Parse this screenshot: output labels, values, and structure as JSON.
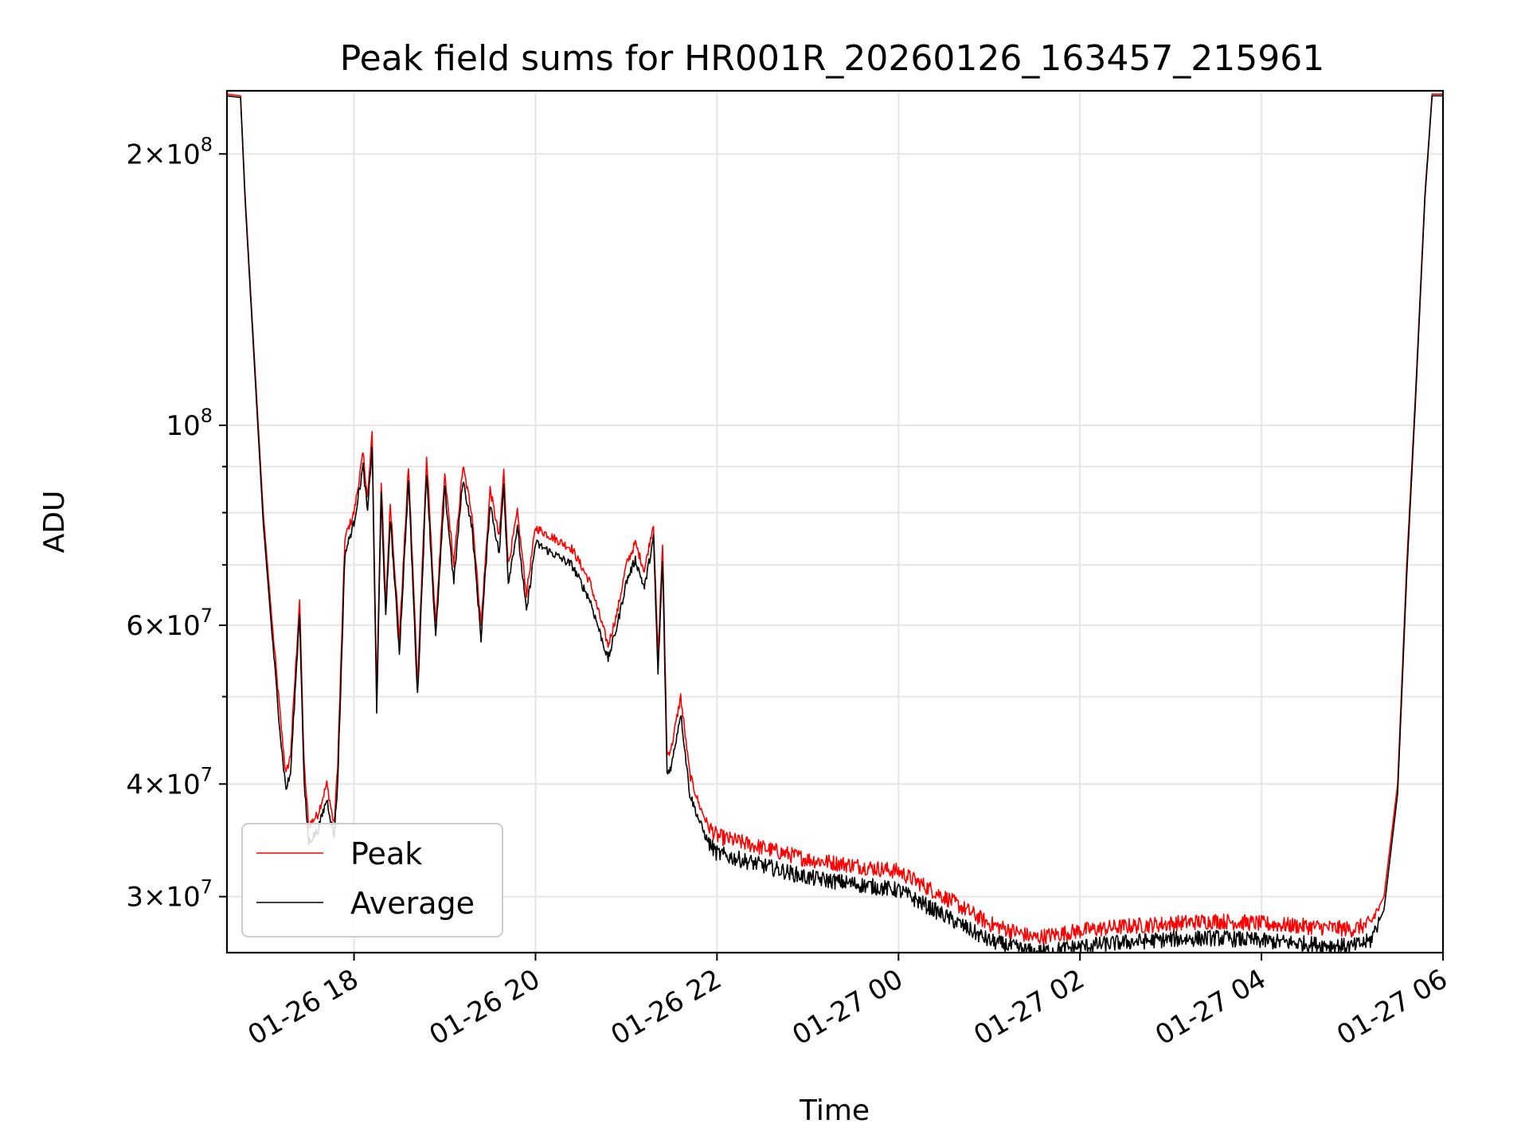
{
  "chart_data": {
    "type": "line",
    "title": "Peak field sums for HR001R_20260126_163457_215961",
    "xlabel": "Time",
    "ylabel": "ADU",
    "yscale": "log",
    "ylim": [
      26000000,
      235000000
    ],
    "xlim_hours": [
      16.6,
      30.0
    ],
    "grid": true,
    "legend_position": "lower-left",
    "x_ticks": [
      {
        "hour": 18,
        "label": "01-26 18"
      },
      {
        "hour": 20,
        "label": "01-26 20"
      },
      {
        "hour": 22,
        "label": "01-26 22"
      },
      {
        "hour": 24,
        "label": "01-27 00"
      },
      {
        "hour": 26,
        "label": "01-27 02"
      },
      {
        "hour": 28,
        "label": "01-27 04"
      },
      {
        "hour": 30,
        "label": "01-27 06"
      }
    ],
    "y_ticks": [
      {
        "value": 30000000,
        "mant": "3",
        "exp": "7"
      },
      {
        "value": 40000000,
        "mant": "4",
        "exp": "7"
      },
      {
        "value": 60000000,
        "mant": "6",
        "exp": "7"
      },
      {
        "value": 100000000,
        "mant": "",
        "exp": "8"
      },
      {
        "value": 200000000,
        "mant": "2",
        "exp": "8"
      }
    ],
    "y_minor_ticks": [
      50000000,
      70000000,
      80000000,
      90000000
    ],
    "series": [
      {
        "name": "Peak",
        "color": "#ff0000",
        "x": [
          16.6,
          16.75,
          16.8,
          16.9,
          17.0,
          17.1,
          17.2,
          17.25,
          17.3,
          17.4,
          17.45,
          17.5,
          17.6,
          17.7,
          17.78,
          17.82,
          17.9,
          18.0,
          18.1,
          18.15,
          18.2,
          18.25,
          18.3,
          18.35,
          18.4,
          18.5,
          18.6,
          18.7,
          18.8,
          18.9,
          19.0,
          19.1,
          19.2,
          19.3,
          19.4,
          19.5,
          19.6,
          19.65,
          19.7,
          19.8,
          19.9,
          20.0,
          20.2,
          20.4,
          20.6,
          20.8,
          20.9,
          21.0,
          21.1,
          21.2,
          21.3,
          21.35,
          21.4,
          21.45,
          21.5,
          21.6,
          21.7,
          21.8,
          21.9,
          22.0,
          22.5,
          23.0,
          23.5,
          24.0,
          24.5,
          25.0,
          25.5,
          26.0,
          26.5,
          27.0,
          27.5,
          28.0,
          28.5,
          29.0,
          29.2,
          29.35,
          29.5,
          29.6,
          29.7,
          29.8,
          29.88,
          30.0
        ],
        "y": [
          233000000,
          232000000,
          180000000,
          120000000,
          80000000,
          60000000,
          46000000,
          41000000,
          43000000,
          64000000,
          42000000,
          36000000,
          37000000,
          40000000,
          36000000,
          42000000,
          75000000,
          80000000,
          93000000,
          83000000,
          98000000,
          50000000,
          87000000,
          63000000,
          82000000,
          58000000,
          90000000,
          52000000,
          92000000,
          60000000,
          88000000,
          70000000,
          90000000,
          80000000,
          60000000,
          85000000,
          75000000,
          89000000,
          70000000,
          80000000,
          65000000,
          77000000,
          75000000,
          73000000,
          67000000,
          57000000,
          62000000,
          70000000,
          74000000,
          69000000,
          78000000,
          55000000,
          74000000,
          43000000,
          44000000,
          50000000,
          41000000,
          38000000,
          36000000,
          35000000,
          34000000,
          33000000,
          32500000,
          32000000,
          30000000,
          28000000,
          27000000,
          27500000,
          27800000,
          28000000,
          28200000,
          28000000,
          27800000,
          27600000,
          28000000,
          30000000,
          40000000,
          70000000,
          110000000,
          180000000,
          233000000,
          233000000
        ]
      },
      {
        "name": "Average",
        "color": "#000000",
        "x": [
          16.6,
          16.75,
          16.8,
          16.9,
          17.0,
          17.1,
          17.2,
          17.25,
          17.3,
          17.4,
          17.45,
          17.5,
          17.6,
          17.7,
          17.78,
          17.82,
          17.9,
          18.0,
          18.1,
          18.15,
          18.2,
          18.25,
          18.3,
          18.35,
          18.4,
          18.5,
          18.6,
          18.7,
          18.8,
          18.9,
          19.0,
          19.1,
          19.2,
          19.3,
          19.4,
          19.5,
          19.6,
          19.65,
          19.7,
          19.8,
          19.9,
          20.0,
          20.2,
          20.4,
          20.6,
          20.8,
          20.9,
          21.0,
          21.1,
          21.2,
          21.3,
          21.35,
          21.4,
          21.45,
          21.5,
          21.6,
          21.7,
          21.8,
          21.9,
          22.0,
          22.5,
          23.0,
          23.5,
          24.0,
          24.5,
          25.0,
          25.5,
          26.0,
          26.5,
          27.0,
          27.5,
          28.0,
          28.5,
          29.0,
          29.2,
          29.35,
          29.5,
          29.6,
          29.7,
          29.8,
          29.88,
          30.0
        ],
        "y": [
          232000000,
          231000000,
          178000000,
          118000000,
          78000000,
          58000000,
          44000000,
          39500000,
          41000000,
          62000000,
          40000000,
          34500000,
          35500000,
          38500000,
          35000000,
          40000000,
          72000000,
          78000000,
          90000000,
          80000000,
          95000000,
          48000000,
          84000000,
          61000000,
          79000000,
          56000000,
          87000000,
          50000000,
          89000000,
          58000000,
          85000000,
          67000000,
          87000000,
          77000000,
          58000000,
          82000000,
          72000000,
          86000000,
          67000000,
          77000000,
          62000000,
          74000000,
          72000000,
          70000000,
          64000000,
          55000000,
          60000000,
          67000000,
          71000000,
          66000000,
          75000000,
          53000000,
          71000000,
          41000000,
          42000000,
          48000000,
          39000000,
          36500000,
          34500000,
          33500000,
          32500000,
          31500000,
          31000000,
          30500000,
          28600000,
          26800000,
          26000000,
          26400000,
          26700000,
          26900000,
          27000000,
          26800000,
          26600000,
          26400000,
          26800000,
          29000000,
          39000000,
          68000000,
          108000000,
          178000000,
          232000000,
          232000000
        ]
      }
    ]
  }
}
